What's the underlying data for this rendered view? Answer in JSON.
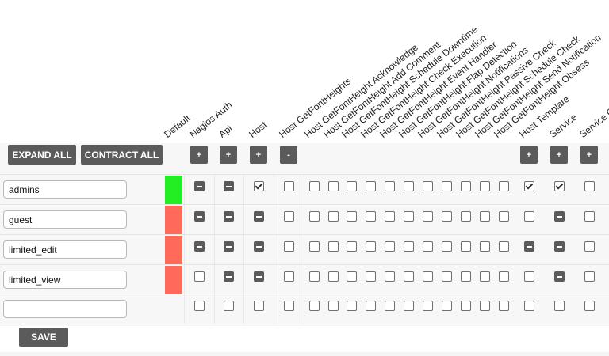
{
  "toolbar": {
    "expand_all": "EXPAND ALL",
    "contract_all": "CONTRACT ALL",
    "save": "SAVE"
  },
  "columns": [
    {
      "label": "Default",
      "toggle": ""
    },
    {
      "label": "Nagios Auth",
      "toggle": "+"
    },
    {
      "label": "Api",
      "toggle": "+"
    },
    {
      "label": "Host",
      "toggle": "+"
    },
    {
      "label": "Host GetFontHeights",
      "toggle": "-"
    },
    {
      "label": "Host GetFontHeight Acknowledge",
      "toggle": ""
    },
    {
      "label": "Host GetFontHeight Add Comment",
      "toggle": ""
    },
    {
      "label": "Host GetFontHeight Schedule Downtime",
      "toggle": ""
    },
    {
      "label": "Host GetFontHeight Check Execution",
      "toggle": ""
    },
    {
      "label": "Host GetFontHeight Event Handler",
      "toggle": ""
    },
    {
      "label": "Host GetFontHeight Flap Detection",
      "toggle": ""
    },
    {
      "label": "Host GetFontHeight Notifications",
      "toggle": ""
    },
    {
      "label": "Host GetFontHeight Passive Check",
      "toggle": ""
    },
    {
      "label": "Host GetFontHeight Schedule Check",
      "toggle": ""
    },
    {
      "label": "Host GetFontHeight Send Notification",
      "toggle": ""
    },
    {
      "label": "Host GetFontHeight Obsess",
      "toggle": ""
    },
    {
      "label": "Host Template",
      "toggle": "+"
    },
    {
      "label": "Service",
      "toggle": "+"
    },
    {
      "label": "Service G",
      "toggle": "+"
    }
  ],
  "rows": [
    {
      "name": "admins",
      "default": "#22ee22",
      "states": [
        "indet",
        "indet",
        "checked",
        "empty",
        "empty",
        "empty",
        "empty",
        "empty",
        "empty",
        "empty",
        "empty",
        "empty",
        "empty",
        "empty",
        "empty",
        "checked",
        "checked",
        "empty"
      ]
    },
    {
      "name": "guest",
      "default": "#ff6a5a",
      "states": [
        "indet",
        "indet",
        "indet",
        "empty",
        "empty",
        "empty",
        "empty",
        "empty",
        "empty",
        "empty",
        "empty",
        "empty",
        "empty",
        "empty",
        "empty",
        "empty",
        "indet",
        "empty"
      ]
    },
    {
      "name": "limited_edit",
      "default": "#ff6a5a",
      "states": [
        "indet",
        "indet",
        "indet",
        "empty",
        "empty",
        "empty",
        "empty",
        "empty",
        "empty",
        "empty",
        "empty",
        "empty",
        "empty",
        "empty",
        "empty",
        "indet",
        "indet",
        "empty"
      ]
    },
    {
      "name": "limited_view",
      "default": "#ff6a5a",
      "states": [
        "empty",
        "indet",
        "indet",
        "empty",
        "empty",
        "empty",
        "empty",
        "empty",
        "empty",
        "empty",
        "empty",
        "empty",
        "empty",
        "empty",
        "empty",
        "empty",
        "indet",
        "empty"
      ]
    },
    {
      "name": "",
      "default": "",
      "states": [
        "empty",
        "empty",
        "empty",
        "empty",
        "empty",
        "empty",
        "empty",
        "empty",
        "empty",
        "empty",
        "empty",
        "empty",
        "empty",
        "empty",
        "empty",
        "empty",
        "empty",
        "empty"
      ]
    }
  ]
}
